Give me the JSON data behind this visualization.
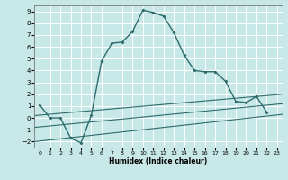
{
  "xlabel": "Humidex (Indice chaleur)",
  "background_color": "#c8e8e8",
  "grid_color": "#ffffff",
  "line_color": "#2d6b6b",
  "xlim": [
    -0.5,
    23.5
  ],
  "ylim": [
    -2.5,
    9.5
  ],
  "xticks": [
    0,
    1,
    2,
    3,
    4,
    5,
    6,
    7,
    8,
    9,
    10,
    11,
    12,
    13,
    14,
    15,
    16,
    17,
    18,
    19,
    20,
    21,
    22,
    23
  ],
  "yticks": [
    -2,
    -1,
    0,
    1,
    2,
    3,
    4,
    5,
    6,
    7,
    8,
    9
  ],
  "main_x": [
    0,
    1,
    2,
    3,
    4,
    5,
    6,
    7,
    8,
    9,
    10,
    11,
    12,
    13,
    14,
    15,
    16,
    17,
    18,
    19,
    20,
    21,
    22
  ],
  "main_y": [
    1.1,
    0.0,
    0.0,
    -1.7,
    -2.1,
    0.2,
    4.8,
    6.3,
    6.4,
    7.3,
    9.1,
    8.9,
    8.6,
    7.2,
    5.3,
    4.0,
    3.9,
    3.9,
    3.1,
    1.4,
    1.3,
    1.8,
    0.5
  ],
  "straight_lines": [
    {
      "x0": -0.5,
      "y0": -2.0,
      "x1": 23.5,
      "y1": 0.3
    },
    {
      "x0": -0.5,
      "y0": -0.8,
      "x1": 23.5,
      "y1": 1.2
    },
    {
      "x0": -0.5,
      "y0": 0.2,
      "x1": 23.5,
      "y1": 2.0
    }
  ]
}
